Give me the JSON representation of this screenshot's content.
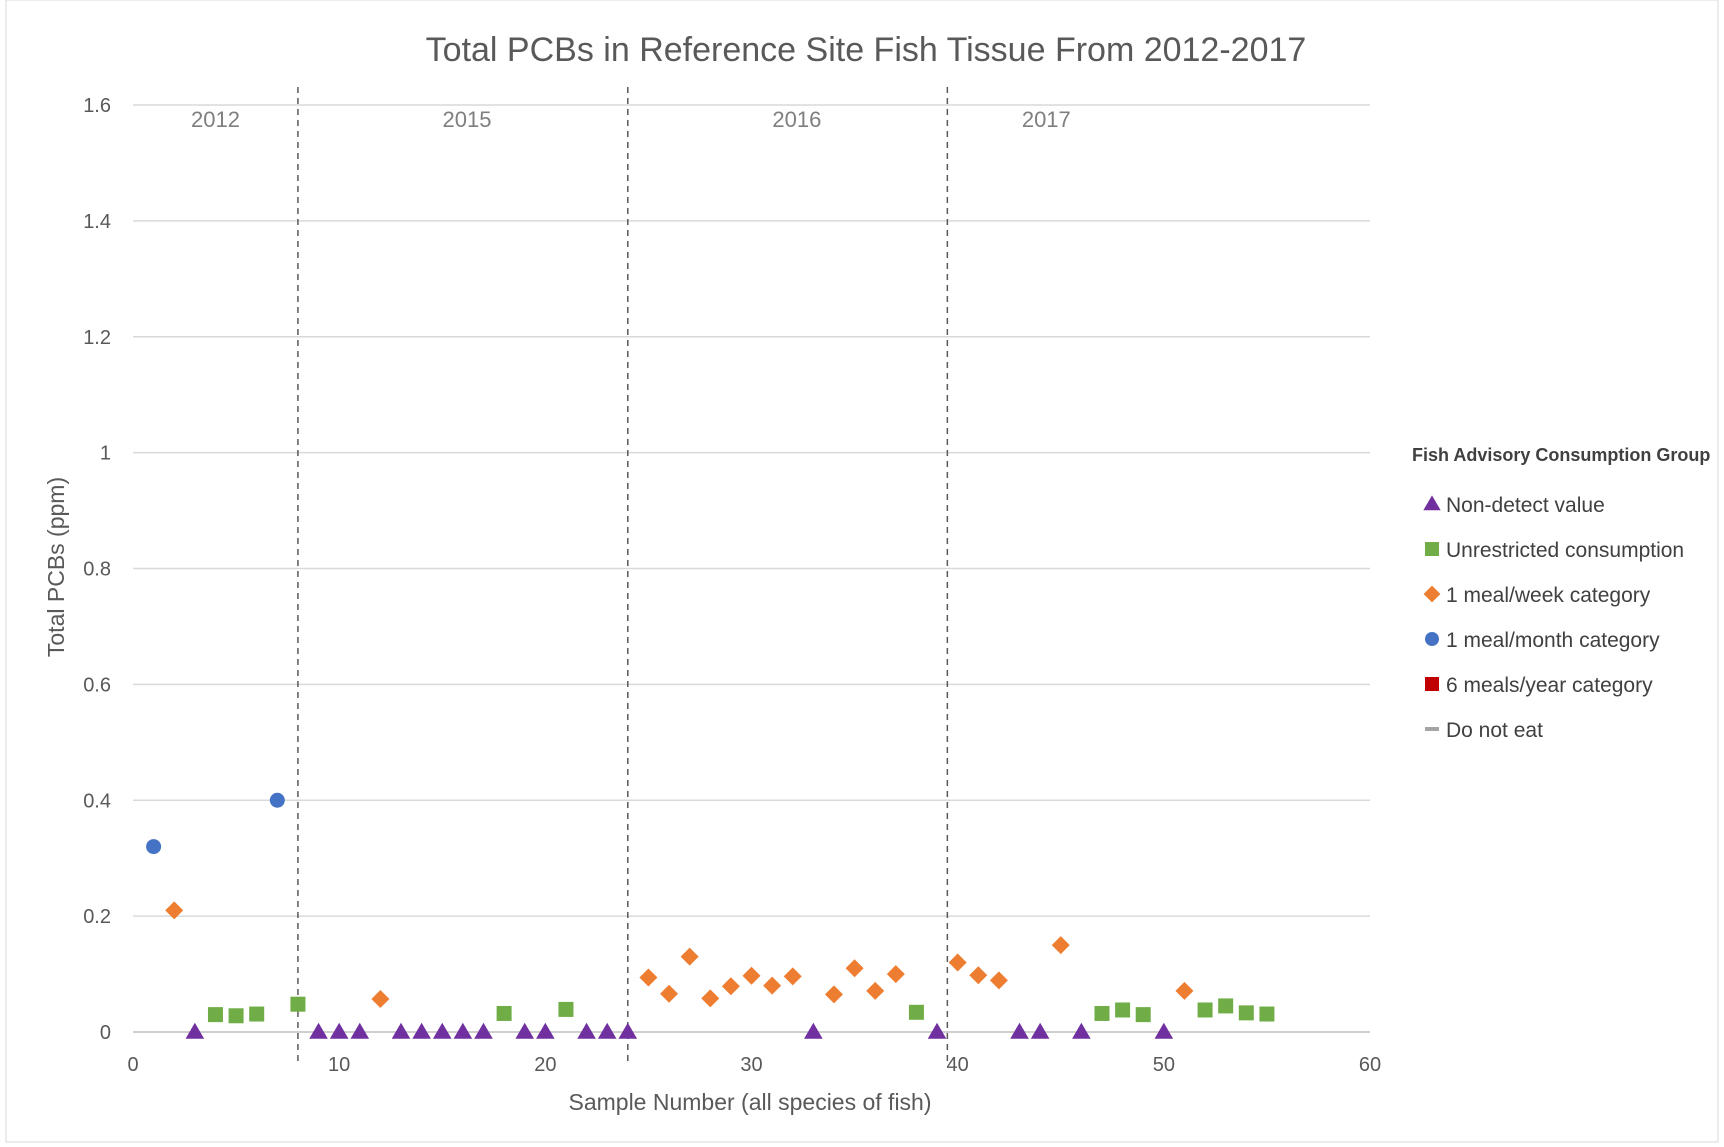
{
  "chart_data": {
    "type": "scatter",
    "title": "Total PCBs in Reference Site Fish Tissue From 2012-2017",
    "xlabel": "Sample Number (all species of fish)",
    "ylabel": "Total PCBs (ppm)",
    "xlim": [
      0,
      60
    ],
    "ylim": [
      0,
      1.6
    ],
    "x_ticks": [
      "0",
      "10",
      "20",
      "30",
      "40",
      "50",
      "60"
    ],
    "y_ticks": [
      "0",
      "0.2",
      "0.4",
      "0.6",
      "0.8",
      "1",
      "1.2",
      "1.4",
      "1.6"
    ],
    "grid": "horizontal",
    "legend_position": "right",
    "legend_title": "Fish Advisory Consumption Group",
    "year_dividers": [
      8,
      24,
      39.5
    ],
    "year_labels": [
      {
        "label": "2012",
        "x": 4
      },
      {
        "label": "2015",
        "x": 16.2
      },
      {
        "label": "2016",
        "x": 32.2
      },
      {
        "label": "2017",
        "x": 44.3
      }
    ],
    "series": [
      {
        "name": "Non-detect value",
        "marker": "triangle",
        "color": "#7030a0",
        "points": [
          [
            3,
            0
          ],
          [
            9,
            0
          ],
          [
            10,
            0
          ],
          [
            11,
            0
          ],
          [
            13,
            0
          ],
          [
            14,
            0
          ],
          [
            15,
            0
          ],
          [
            16,
            0
          ],
          [
            17,
            0
          ],
          [
            19,
            0
          ],
          [
            20,
            0
          ],
          [
            22,
            0
          ],
          [
            23,
            0
          ],
          [
            24,
            0
          ],
          [
            33,
            0
          ],
          [
            39,
            0
          ],
          [
            43,
            0
          ],
          [
            44,
            0
          ],
          [
            46,
            0
          ],
          [
            50,
            0
          ]
        ]
      },
      {
        "name": "Unrestricted consumption",
        "marker": "square",
        "color": "#70ad47",
        "points": [
          [
            4,
            0.03
          ],
          [
            5,
            0.028
          ],
          [
            6,
            0.031
          ],
          [
            8,
            0.048
          ],
          [
            18,
            0.032
          ],
          [
            21,
            0.039
          ],
          [
            38,
            0.034
          ],
          [
            47,
            0.032
          ],
          [
            48,
            0.038
          ],
          [
            49,
            0.03
          ],
          [
            52,
            0.038
          ],
          [
            53,
            0.045
          ],
          [
            54,
            0.033
          ],
          [
            55,
            0.031
          ]
        ]
      },
      {
        "name": "1 meal/week category",
        "marker": "diamond",
        "color": "#ed7d31",
        "points": [
          [
            2,
            0.21
          ],
          [
            12,
            0.057
          ],
          [
            25,
            0.094
          ],
          [
            26,
            0.066
          ],
          [
            27,
            0.13
          ],
          [
            28,
            0.058
          ],
          [
            29,
            0.079
          ],
          [
            30,
            0.097
          ],
          [
            31,
            0.08
          ],
          [
            32,
            0.096
          ],
          [
            34,
            0.065
          ],
          [
            35,
            0.11
          ],
          [
            36,
            0.071
          ],
          [
            37,
            0.1
          ],
          [
            40,
            0.12
          ],
          [
            41,
            0.098
          ],
          [
            42,
            0.089
          ],
          [
            45,
            0.15
          ],
          [
            51,
            0.071
          ]
        ]
      },
      {
        "name": "1 meal/month category",
        "marker": "circle",
        "color": "#4472c4",
        "points": [
          [
            1,
            0.32
          ],
          [
            7,
            0.4
          ]
        ]
      },
      {
        "name": "6 meals/year category",
        "marker": "square",
        "color": "#c00000",
        "points": []
      },
      {
        "name": "Do not eat",
        "marker": "dash",
        "color": "#a5a5a5",
        "points": []
      }
    ]
  }
}
